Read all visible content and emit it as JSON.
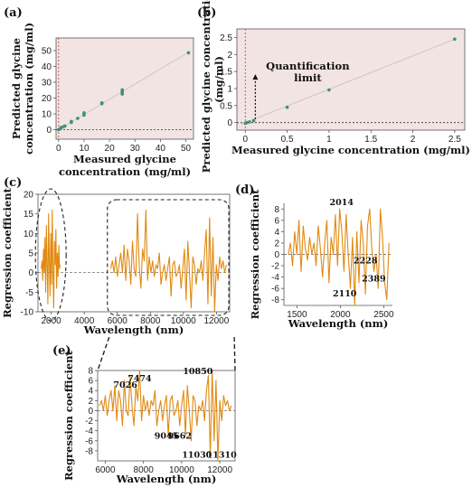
{
  "colors": {
    "plot_bg_ab": "#f2e4e3",
    "marker": "#3e8f7f",
    "fit_line": "#c8c8c8",
    "signal": "#e08a12",
    "dashed": "#222222",
    "ref_red": "#d23a3a"
  },
  "panels": {
    "a": {
      "label": "(a)"
    },
    "b": {
      "label": "(b)"
    },
    "c": {
      "label": "(c)"
    },
    "d": {
      "label": "(d)"
    },
    "e": {
      "label": "(e)"
    }
  },
  "chart_data": [
    {
      "id": "a",
      "type": "scatter",
      "xlabel": "Measured glycine concentration (mg/ml)",
      "xlabel_lines": [
        "Measured glycine",
        "concentration (mg/ml)"
      ],
      "ylabel": "Predicted glycine concentration (mg/ml)",
      "ylabel_lines": [
        "Predicted glycine",
        "concentration (mg/ml)"
      ],
      "xlim": [
        -1,
        53
      ],
      "ylim": [
        -6,
        58
      ],
      "xticks": [
        0,
        10,
        20,
        30,
        40,
        50
      ],
      "yticks": [
        0,
        10,
        20,
        30,
        40,
        50
      ],
      "fit_line": [
        [
          0,
          0
        ],
        [
          50,
          48
        ]
      ],
      "points": [
        [
          0,
          0
        ],
        [
          0.5,
          0.5
        ],
        [
          1,
          1
        ],
        [
          1,
          1.4
        ],
        [
          2,
          2
        ],
        [
          2.5,
          2.3
        ],
        [
          5,
          4.6
        ],
        [
          5,
          5.2
        ],
        [
          7.5,
          7.2
        ],
        [
          10,
          9.2
        ],
        [
          10,
          10
        ],
        [
          10,
          10.6
        ],
        [
          17,
          16.4
        ],
        [
          17,
          17
        ],
        [
          25,
          22.5
        ],
        [
          25,
          23.6
        ],
        [
          25,
          24.4
        ],
        [
          25,
          25.2
        ],
        [
          51,
          48.6
        ]
      ]
    },
    {
      "id": "b",
      "type": "scatter",
      "xlabel": "Measured glycine concentration (mg/ml)",
      "ylabel": "Predicted glycine concentration (mg/ml)",
      "ylabel_lines": [
        "Predicted glycine concentration",
        "(mg/ml)"
      ],
      "xlim": [
        -0.1,
        2.62
      ],
      "ylim": [
        -0.22,
        2.75
      ],
      "xticks": [
        0,
        0.5,
        1,
        1.5,
        2,
        2.5
      ],
      "xtick_labels": [
        "0",
        "0.5",
        "1",
        "1.5",
        "2",
        "2.5"
      ],
      "yticks": [
        0,
        0.5,
        1,
        1.5,
        2,
        2.5
      ],
      "ytick_labels": [
        "0",
        "0.5",
        "1",
        "1.5",
        "2",
        "2.5"
      ],
      "fit_line": [
        [
          -0.05,
          -0.05
        ],
        [
          2.5,
          2.45
        ]
      ],
      "points": [
        [
          0,
          -0.02
        ],
        [
          0.02,
          0.0
        ],
        [
          0.05,
          0.02
        ],
        [
          0.1,
          0.06
        ],
        [
          0.5,
          0.45
        ],
        [
          1,
          0.96
        ],
        [
          2.5,
          2.45
        ]
      ],
      "annotation": {
        "text_lines": [
          "Quantification",
          "limit"
        ],
        "x": 0.12,
        "y": 1.5
      }
    },
    {
      "id": "c",
      "type": "line",
      "xlabel": "Wavelength (nm)",
      "ylabel": "Regression coefficient",
      "xlim": [
        1200,
        12800
      ],
      "ylim": [
        -10,
        20
      ],
      "xticks": [
        2000,
        4000,
        6000,
        8000,
        10000,
        12000
      ],
      "yticks": [
        -10,
        -5,
        0,
        5,
        10,
        15,
        20
      ],
      "segments": [
        {
          "x0": 1400,
          "x1": 2550,
          "values": [
            1,
            3,
            -2,
            6,
            0,
            9,
            -5,
            12,
            2,
            -8,
            15,
            3,
            -6,
            10,
            -3,
            16,
            0,
            -9,
            8,
            2,
            11,
            -4,
            5,
            -1,
            7,
            1,
            2
          ]
        },
        {
          "x0": 5600,
          "x1": 12600,
          "values": [
            1,
            3,
            0,
            4,
            -1,
            2,
            5,
            0,
            7,
            -2,
            6,
            3,
            -3,
            8,
            1,
            -1,
            15,
            2,
            -4,
            6,
            3,
            16,
            -2,
            4,
            0,
            3,
            -1,
            2,
            1,
            5,
            -3,
            0,
            2,
            -2,
            1,
            4,
            -6,
            2,
            3,
            -1,
            0,
            2,
            -4,
            1,
            6,
            -7,
            8,
            0,
            -9,
            4,
            2,
            -3,
            1,
            0,
            3,
            -2,
            5,
            11,
            -8,
            14,
            -6,
            9,
            -10,
            2,
            -2,
            4,
            1,
            3,
            0,
            2
          ]
        }
      ],
      "zero_line": true
    },
    {
      "id": "d",
      "type": "line",
      "xlabel": "Wavelength (nm)",
      "ylabel": "Regression coefficient",
      "xlim": [
        1350,
        2600
      ],
      "ylim": [
        -9,
        9
      ],
      "xticks": [
        1500,
        2000,
        2500
      ],
      "yticks": [
        -8,
        -6,
        -4,
        -2,
        0,
        2,
        4,
        6,
        8
      ],
      "segments": [
        {
          "x0": 1400,
          "x1": 2560,
          "values": [
            0,
            2,
            -2,
            4,
            0,
            6,
            -3,
            5,
            1,
            -1,
            3,
            0,
            2,
            -2,
            5,
            1,
            -4,
            2,
            6,
            -5,
            3,
            0,
            7,
            -2,
            8,
            4,
            -3,
            7,
            0,
            -6,
            3,
            -9,
            4,
            -5,
            6,
            2,
            -7,
            5,
            8,
            1,
            -3,
            0,
            -6,
            8,
            3,
            -5,
            -8,
            2
          ]
        }
      ],
      "zero_line": true,
      "annotations": [
        {
          "text": "2014",
          "x": 2014,
          "y": 8.7
        },
        {
          "text": "2228",
          "x": 2290,
          "y": -1.6
        },
        {
          "text": "2389",
          "x": 2385,
          "y": -4.8
        },
        {
          "text": "2110",
          "x": 2050,
          "y": -7.4
        }
      ]
    },
    {
      "id": "e",
      "type": "line",
      "xlabel": "Wavelength (nm)",
      "ylabel": "Regression coefficient",
      "xlim": [
        5600,
        12800
      ],
      "ylim": [
        -10,
        8
      ],
      "xticks": [
        6000,
        8000,
        10000,
        12000
      ],
      "yticks": [
        -8,
        -6,
        -4,
        -2,
        0,
        2,
        4,
        6,
        8
      ],
      "segments": [
        {
          "x0": 5700,
          "x1": 12600,
          "values": [
            1,
            2,
            0,
            3,
            -1,
            2,
            4,
            0,
            5,
            -2,
            4,
            2,
            -3,
            6,
            0,
            -1,
            7,
            1,
            -3,
            5,
            2,
            8,
            -2,
            3,
            0,
            2,
            -1,
            2,
            1,
            4,
            -3,
            0,
            2,
            -2,
            1,
            3,
            -5,
            2,
            3,
            -1,
            0,
            2,
            -3,
            1,
            4,
            -5,
            5,
            0,
            -6,
            3,
            2,
            -3,
            1,
            0,
            2,
            -2,
            4,
            7,
            -9,
            8,
            -6,
            6,
            -10,
            2,
            -2,
            3,
            1,
            2,
            0,
            1
          ]
        }
      ],
      "zero_line": true,
      "annotations": [
        {
          "text": "7026",
          "x": 7050,
          "y": 4.6
        },
        {
          "text": "7474",
          "x": 7800,
          "y": 5.8
        },
        {
          "text": "10850",
          "x": 10850,
          "y": 7.3
        },
        {
          "text": "9045",
          "x": 9200,
          "y": -5.6
        },
        {
          "text": "9662",
          "x": 9900,
          "y": -5.6
        },
        {
          "text": "11030",
          "x": 10800,
          "y": -9.4
        },
        {
          "text": "11310",
          "x": 12100,
          "y": -9.4
        }
      ]
    }
  ]
}
